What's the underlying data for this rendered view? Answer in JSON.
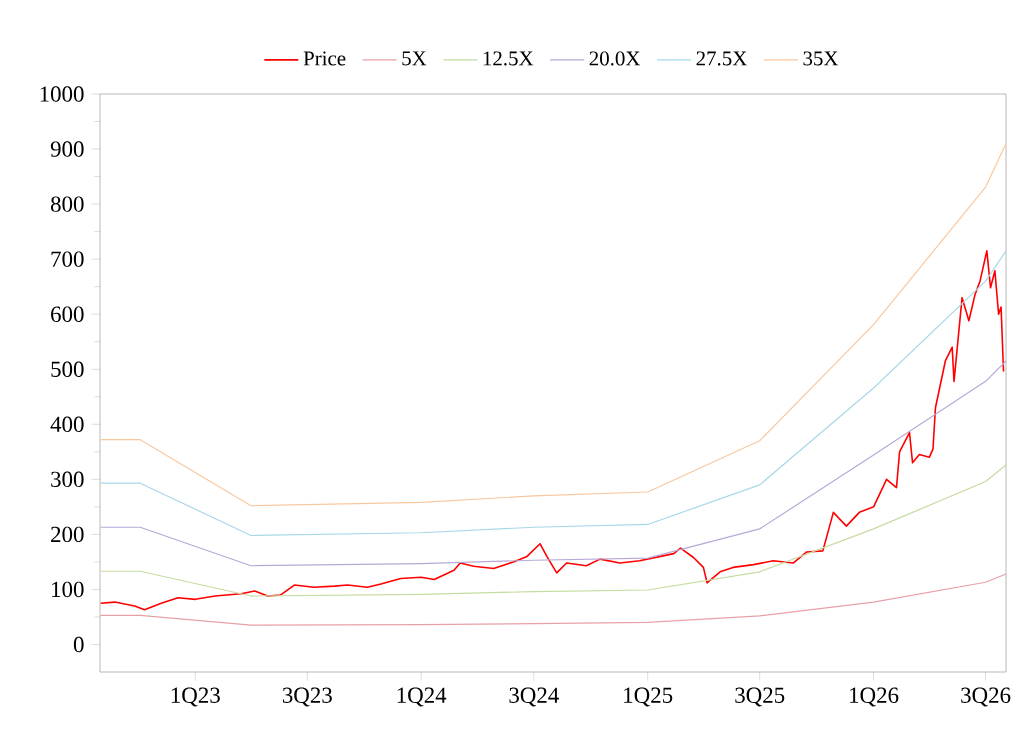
{
  "chart_data": {
    "type": "line",
    "legend": "top",
    "grid": false,
    "xlim": [
      "2022-07-31",
      "2026-08-03"
    ],
    "ylim": [
      -50,
      1000
    ],
    "xticks": [
      {
        "value": "2023-01-01",
        "label": "1Q23"
      },
      {
        "value": "2023-07-01",
        "label": "3Q23"
      },
      {
        "value": "2024-01-01",
        "label": "1Q24"
      },
      {
        "value": "2024-07-01",
        "label": "3Q24"
      },
      {
        "value": "2025-01-01",
        "label": "1Q25"
      },
      {
        "value": "2025-07-01",
        "label": "3Q25"
      },
      {
        "value": "2026-01-01",
        "label": "1Q26"
      },
      {
        "value": "2026-07-01",
        "label": "3Q26"
      }
    ],
    "yticks": [
      0,
      100,
      200,
      300,
      400,
      500,
      600,
      700,
      800,
      900,
      1000
    ],
    "series": [
      {
        "name": "Price",
        "color": "#ff0000",
        "x": [
          "2022-08-01",
          "2022-08-24",
          "2022-09-25",
          "2022-10-11",
          "2022-11-07",
          "2022-12-04",
          "2023-01-01",
          "2023-02-02",
          "2023-03-16",
          "2023-04-07",
          "2023-04-28",
          "2023-05-19",
          "2023-06-10",
          "2023-07-12",
          "2023-08-14",
          "2023-09-04",
          "2023-10-06",
          "2023-10-28",
          "2023-11-29",
          "2024-01-01",
          "2024-01-22",
          "2024-02-23",
          "2024-03-04",
          "2024-03-26",
          "2024-04-27",
          "2024-05-29",
          "2024-06-20",
          "2024-07-11",
          "2024-07-22",
          "2024-08-07",
          "2024-08-23",
          "2024-09-24",
          "2024-10-16",
          "2024-11-17",
          "2024-12-19",
          "2025-01-22",
          "2025-02-12",
          "2025-02-23",
          "2025-03-16",
          "2025-04-01",
          "2025-04-07",
          "2025-04-28",
          "2025-05-19",
          "2025-06-21",
          "2025-07-23",
          "2025-08-24",
          "2025-09-15",
          "2025-10-11",
          "2025-10-28",
          "2025-11-18",
          "2025-12-09",
          "2026-01-01",
          "2026-01-22",
          "2026-02-07",
          "2026-02-12",
          "2026-02-28",
          "2026-03-05",
          "2026-03-16",
          "2026-04-01",
          "2026-04-07",
          "2026-04-11",
          "2026-04-27",
          "2026-05-08",
          "2026-05-11",
          "2026-05-24",
          "2026-06-04",
          "2026-06-14",
          "2026-06-22",
          "2026-07-03",
          "2026-07-09",
          "2026-07-16",
          "2026-07-22",
          "2026-07-26",
          "2026-07-30"
        ],
        "values": [
          75,
          77,
          70,
          63,
          75,
          85,
          82,
          88,
          92,
          97,
          88,
          90,
          108,
          104,
          106,
          108,
          104,
          110,
          120,
          122,
          118,
          135,
          148,
          142,
          138,
          150,
          160,
          183,
          160,
          130,
          148,
          143,
          155,
          148,
          152,
          160,
          165,
          175,
          158,
          140,
          112,
          132,
          140,
          145,
          152,
          148,
          168,
          170,
          240,
          215,
          240,
          250,
          300,
          285,
          350,
          385,
          330,
          345,
          340,
          355,
          430,
          515,
          540,
          478,
          630,
          588,
          636,
          660,
          715,
          648,
          679,
          600,
          613,
          496
        ]
      },
      {
        "name": "5X",
        "color": "#e8a0a8",
        "x": [
          "2022-08-01",
          "2022-10-04",
          "2023-04-01",
          "2024-01-01",
          "2024-07-01",
          "2025-01-01",
          "2025-07-01",
          "2026-01-01",
          "2026-07-01",
          "2026-08-03"
        ],
        "values": [
          53,
          53,
          35,
          36,
          38,
          40,
          52,
          77,
          113,
          128
        ]
      },
      {
        "name": "12.5X",
        "color": "#c5dca0",
        "x": [
          "2022-08-01",
          "2022-10-04",
          "2023-04-01",
          "2024-01-01",
          "2024-07-01",
          "2025-01-01",
          "2025-07-01",
          "2026-01-01",
          "2026-07-01",
          "2026-08-03"
        ],
        "values": [
          133,
          133,
          88,
          91,
          96,
          99,
          132,
          210,
          296,
          326
        ]
      },
      {
        "name": "20.0X",
        "color": "#b8a8d8",
        "x": [
          "2022-08-01",
          "2022-10-04",
          "2023-04-01",
          "2024-01-01",
          "2024-07-01",
          "2025-01-01",
          "2025-07-01",
          "2026-01-01",
          "2026-07-01",
          "2026-08-03"
        ],
        "values": [
          213,
          213,
          143,
          147,
          153,
          157,
          210,
          344,
          478,
          515
        ]
      },
      {
        "name": "27.5X",
        "color": "#a8d8e8",
        "x": [
          "2022-08-01",
          "2022-10-04",
          "2023-04-01",
          "2024-01-01",
          "2024-07-01",
          "2025-01-01",
          "2025-07-01",
          "2026-01-01",
          "2026-07-01",
          "2026-08-03"
        ],
        "values": [
          293,
          293,
          198,
          203,
          213,
          218,
          290,
          466,
          660,
          715
        ]
      },
      {
        "name": "35X",
        "color": "#f8c8a0",
        "x": [
          "2022-08-01",
          "2022-10-04",
          "2023-04-01",
          "2024-01-01",
          "2024-07-01",
          "2025-01-01",
          "2025-07-01",
          "2026-01-01",
          "2026-07-01",
          "2026-08-03"
        ],
        "values": [
          372,
          372,
          252,
          258,
          270,
          277,
          370,
          581,
          831,
          910
        ]
      }
    ]
  }
}
